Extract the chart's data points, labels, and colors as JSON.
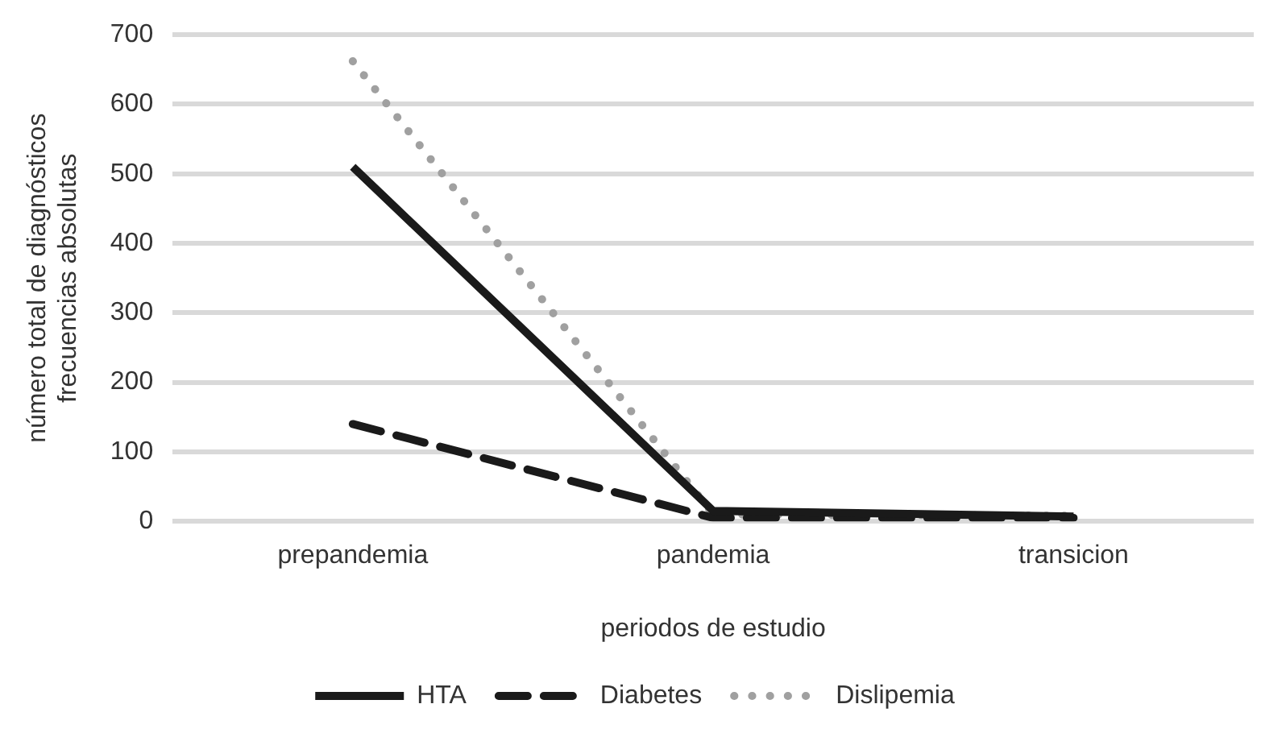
{
  "chart_data": {
    "type": "line",
    "xlabel": "periodos de estudio",
    "ylabel": "número total de diagnósticos frecuencias absolutas",
    "categories": [
      "prepandemia",
      "pandemia",
      "transicion"
    ],
    "series": [
      {
        "name": "HTA",
        "color": "#1a1a1a",
        "values": [
          510,
          15,
          7
        ],
        "line_style": "solid"
      },
      {
        "name": "Diabetes",
        "color": "#1a1a1a",
        "values": [
          140,
          5,
          5
        ],
        "line_style": "dashed"
      },
      {
        "name": "Dislipemia",
        "color": "#a0a0a0",
        "values": [
          662,
          10,
          8
        ],
        "line_style": "dotted"
      }
    ],
    "ylim": [
      0,
      700
    ],
    "yticks": [
      0,
      100,
      200,
      300,
      400,
      500,
      600,
      700
    ],
    "grid": "y",
    "legend": "bottom",
    "marker": "none"
  }
}
